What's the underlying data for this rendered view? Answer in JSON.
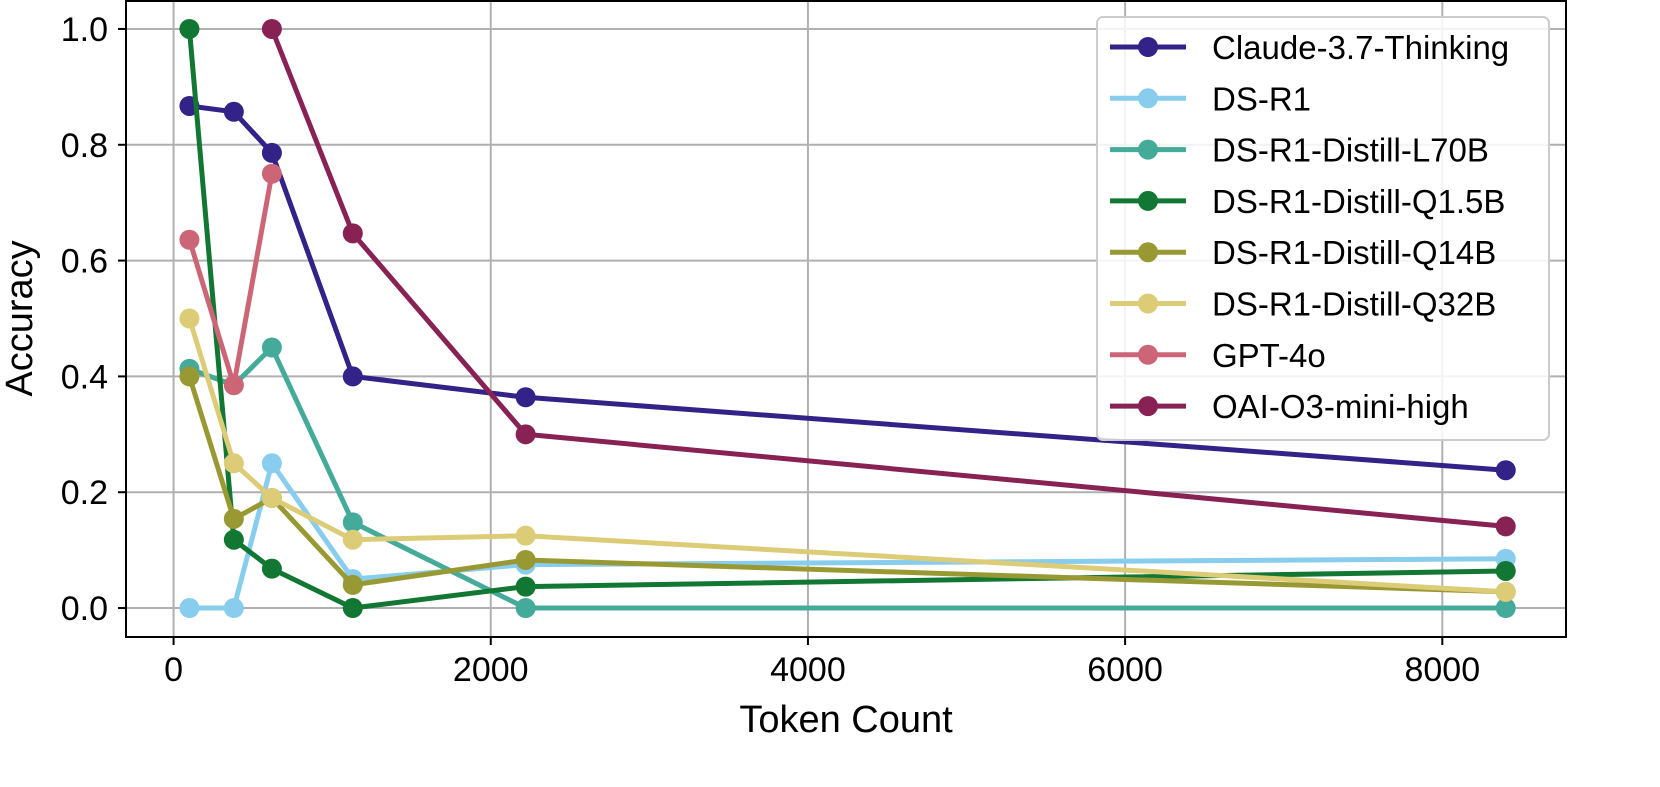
{
  "chart_data": {
    "type": "line",
    "title": "",
    "xlabel": "Token Count",
    "ylabel": "Accuracy",
    "xlim": [
      -300,
      8780
    ],
    "ylim": [
      -0.05,
      1.05
    ],
    "xticks": [
      0,
      2000,
      4000,
      6000,
      8000
    ],
    "xtick_labels": [
      "0",
      "2000",
      "4000",
      "6000",
      "8000"
    ],
    "yticks": [
      0.0,
      0.2,
      0.4,
      0.6,
      0.8,
      1.0
    ],
    "ytick_labels": [
      "0.0",
      "0.2",
      "0.4",
      "0.6",
      "0.8",
      "1.0"
    ],
    "grid": true,
    "legend_position": "top-right",
    "series": [
      {
        "name": "Claude-3.7-Thinking",
        "color": "#332288",
        "x": [
          100,
          380,
          620,
          1130,
          2220,
          8400
        ],
        "y": [
          0.867,
          0.857,
          0.786,
          0.4,
          0.364,
          0.238
        ]
      },
      {
        "name": "DS-R1",
        "color": "#88CCEE",
        "x": [
          100,
          380,
          620,
          1130,
          2220,
          8400
        ],
        "y": [
          0.0,
          0.0,
          0.25,
          0.05,
          0.075,
          0.085
        ]
      },
      {
        "name": "DS-R1-Distill-L70B",
        "color": "#44AA99",
        "x": [
          100,
          380,
          620,
          1130,
          2220,
          8400
        ],
        "y": [
          0.413,
          0.385,
          0.45,
          0.148,
          0.0,
          0.0
        ]
      },
      {
        "name": "DS-R1-Distill-Q1.5B",
        "color": "#117733",
        "x": [
          100,
          380,
          620,
          1130,
          2220,
          8400
        ],
        "y": [
          1.0,
          0.118,
          0.068,
          0.0,
          0.037,
          0.064
        ]
      },
      {
        "name": "DS-R1-Distill-Q14B",
        "color": "#999933",
        "x": [
          100,
          380,
          620,
          1130,
          2220,
          8400
        ],
        "y": [
          0.4,
          0.154,
          0.19,
          0.04,
          0.083,
          0.028
        ]
      },
      {
        "name": "DS-R1-Distill-Q32B",
        "color": "#DDCC77",
        "x": [
          100,
          380,
          620,
          1130,
          2220,
          8400
        ],
        "y": [
          0.5,
          0.25,
          0.19,
          0.118,
          0.125,
          0.028
        ]
      },
      {
        "name": "GPT-4o",
        "color": "#CC6677",
        "x": [
          100,
          380,
          620
        ],
        "y": [
          0.636,
          0.385,
          0.75
        ]
      },
      {
        "name": "OAI-O3-mini-high",
        "color": "#882255",
        "x": [
          620,
          1130,
          2220,
          8400
        ],
        "y": [
          1.0,
          0.647,
          0.3,
          0.141
        ]
      }
    ]
  }
}
